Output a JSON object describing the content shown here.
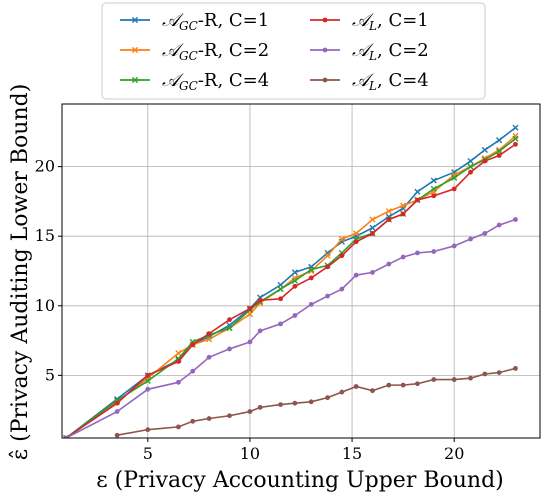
{
  "chart_data": {
    "type": "line",
    "xlabel": "ε (Privacy Accounting Upper Bound)",
    "ylabel": "ε̂ (Privacy Auditing Lower Bound)",
    "xlim": [
      0.8,
      24.2
    ],
    "ylim": [
      0.5,
      24.5
    ],
    "xticks": [
      5,
      10,
      15,
      20
    ],
    "yticks": [
      5,
      10,
      15,
      20
    ],
    "grid": true,
    "legend_position": "top, outside plot",
    "series": [
      {
        "name": "𝒜_GC-R, C=1",
        "name_main": "𝒜",
        "name_sub": "GC",
        "name_rest": "-R, C=1",
        "color": "#1f77b4",
        "marker": "x",
        "x": [
          1.0,
          3.5,
          5.0,
          6.5,
          7.2,
          8.0,
          9.0,
          10.0,
          10.5,
          11.5,
          12.2,
          13.0,
          13.8,
          14.5,
          15.2,
          16.0,
          16.8,
          17.5,
          18.2,
          19.0,
          20.0,
          20.8,
          21.5,
          22.2,
          23.0
        ],
        "y": [
          0.5,
          3.3,
          5.0,
          6.1,
          7.2,
          7.8,
          8.6,
          9.8,
          10.6,
          11.5,
          12.4,
          12.8,
          13.8,
          14.6,
          15.0,
          15.6,
          16.4,
          17.0,
          18.2,
          19.0,
          19.6,
          20.4,
          21.2,
          21.9,
          22.8
        ]
      },
      {
        "name": "𝒜_GC-R, C=2",
        "name_main": "𝒜",
        "name_sub": "GC",
        "name_rest": "-R, C=2",
        "color": "#ff7f0e",
        "marker": "x",
        "x": [
          1.0,
          3.5,
          5.0,
          6.5,
          7.2,
          8.0,
          9.0,
          10.0,
          10.5,
          11.5,
          12.2,
          13.0,
          13.8,
          14.5,
          15.2,
          16.0,
          16.8,
          17.5,
          18.2,
          19.0,
          20.0,
          20.8,
          21.5,
          22.2,
          23.0
        ],
        "y": [
          0.5,
          3.1,
          4.8,
          6.6,
          7.2,
          7.6,
          8.4,
          9.4,
          10.2,
          11.2,
          12.0,
          12.5,
          13.6,
          14.8,
          15.2,
          16.2,
          16.8,
          17.2,
          17.6,
          18.2,
          19.4,
          20.0,
          20.6,
          21.2,
          22.2
        ]
      },
      {
        "name": "𝒜_GC-R, C=4",
        "name_main": "𝒜",
        "name_sub": "GC",
        "name_rest": "-R, C=4",
        "color": "#2ca02c",
        "marker": "x",
        "x": [
          1.0,
          3.5,
          5.0,
          6.5,
          7.2,
          8.0,
          9.0,
          10.0,
          10.5,
          11.5,
          12.2,
          13.0,
          13.8,
          14.5,
          15.2,
          16.0,
          16.8,
          17.5,
          18.2,
          19.0,
          20.0,
          20.8,
          21.5,
          22.2,
          23.0
        ],
        "y": [
          0.5,
          3.2,
          4.6,
          6.2,
          7.4,
          7.9,
          8.4,
          9.7,
          10.3,
          11.2,
          11.8,
          12.6,
          12.9,
          13.8,
          14.8,
          15.2,
          16.2,
          16.6,
          17.6,
          18.4,
          19.2,
          20.0,
          20.5,
          21.1,
          22.0
        ]
      },
      {
        "name": "𝒜_L, C=1",
        "name_main": "𝒜",
        "name_sub": "L",
        "name_rest": ", C=1",
        "color": "#d62728",
        "marker": "o",
        "x": [
          1.0,
          3.5,
          5.0,
          6.5,
          7.2,
          8.0,
          9.0,
          10.0,
          10.5,
          11.5,
          12.2,
          13.0,
          13.8,
          14.5,
          15.2,
          16.0,
          16.8,
          17.5,
          18.2,
          19.0,
          20.0,
          20.8,
          21.5,
          22.2,
          23.0
        ],
        "y": [
          0.5,
          3.0,
          5.0,
          6.0,
          7.2,
          8.0,
          9.0,
          9.8,
          10.4,
          10.5,
          11.4,
          12.0,
          12.8,
          13.6,
          14.6,
          15.2,
          16.2,
          16.6,
          17.6,
          17.9,
          18.4,
          19.6,
          20.4,
          20.8,
          21.6
        ]
      },
      {
        "name": "𝒜_L, C=2",
        "name_main": "𝒜",
        "name_sub": "L",
        "name_rest": ", C=2",
        "color": "#9467bd",
        "marker": "o",
        "x": [
          1.0,
          3.5,
          5.0,
          6.5,
          7.2,
          8.0,
          9.0,
          10.0,
          10.5,
          11.5,
          12.2,
          13.0,
          13.8,
          14.5,
          15.2,
          16.0,
          16.8,
          17.5,
          18.2,
          19.0,
          20.0,
          20.8,
          21.5,
          22.2,
          23.0
        ],
        "y": [
          0.5,
          2.4,
          4.0,
          4.5,
          5.3,
          6.3,
          6.9,
          7.4,
          8.2,
          8.7,
          9.3,
          10.1,
          10.7,
          11.2,
          12.2,
          12.4,
          13.0,
          13.5,
          13.8,
          13.9,
          14.3,
          14.8,
          15.2,
          15.8,
          16.2
        ]
      },
      {
        "name": "𝒜_L, C=4",
        "name_main": "𝒜",
        "name_sub": "L",
        "name_rest": ", C=4",
        "color": "#8c564b",
        "marker": "o",
        "x": [
          3.5,
          5.0,
          6.5,
          7.2,
          8.0,
          9.0,
          10.0,
          10.5,
          11.5,
          12.2,
          13.0,
          13.8,
          14.5,
          15.2,
          16.0,
          16.8,
          17.5,
          18.2,
          19.0,
          20.0,
          20.8,
          21.5,
          22.2,
          23.0
        ],
        "y": [
          0.7,
          1.1,
          1.3,
          1.7,
          1.9,
          2.1,
          2.4,
          2.7,
          2.9,
          3.0,
          3.1,
          3.4,
          3.8,
          4.2,
          3.9,
          4.3,
          4.3,
          4.4,
          4.7,
          4.7,
          4.8,
          5.1,
          5.2,
          5.5
        ]
      }
    ]
  }
}
